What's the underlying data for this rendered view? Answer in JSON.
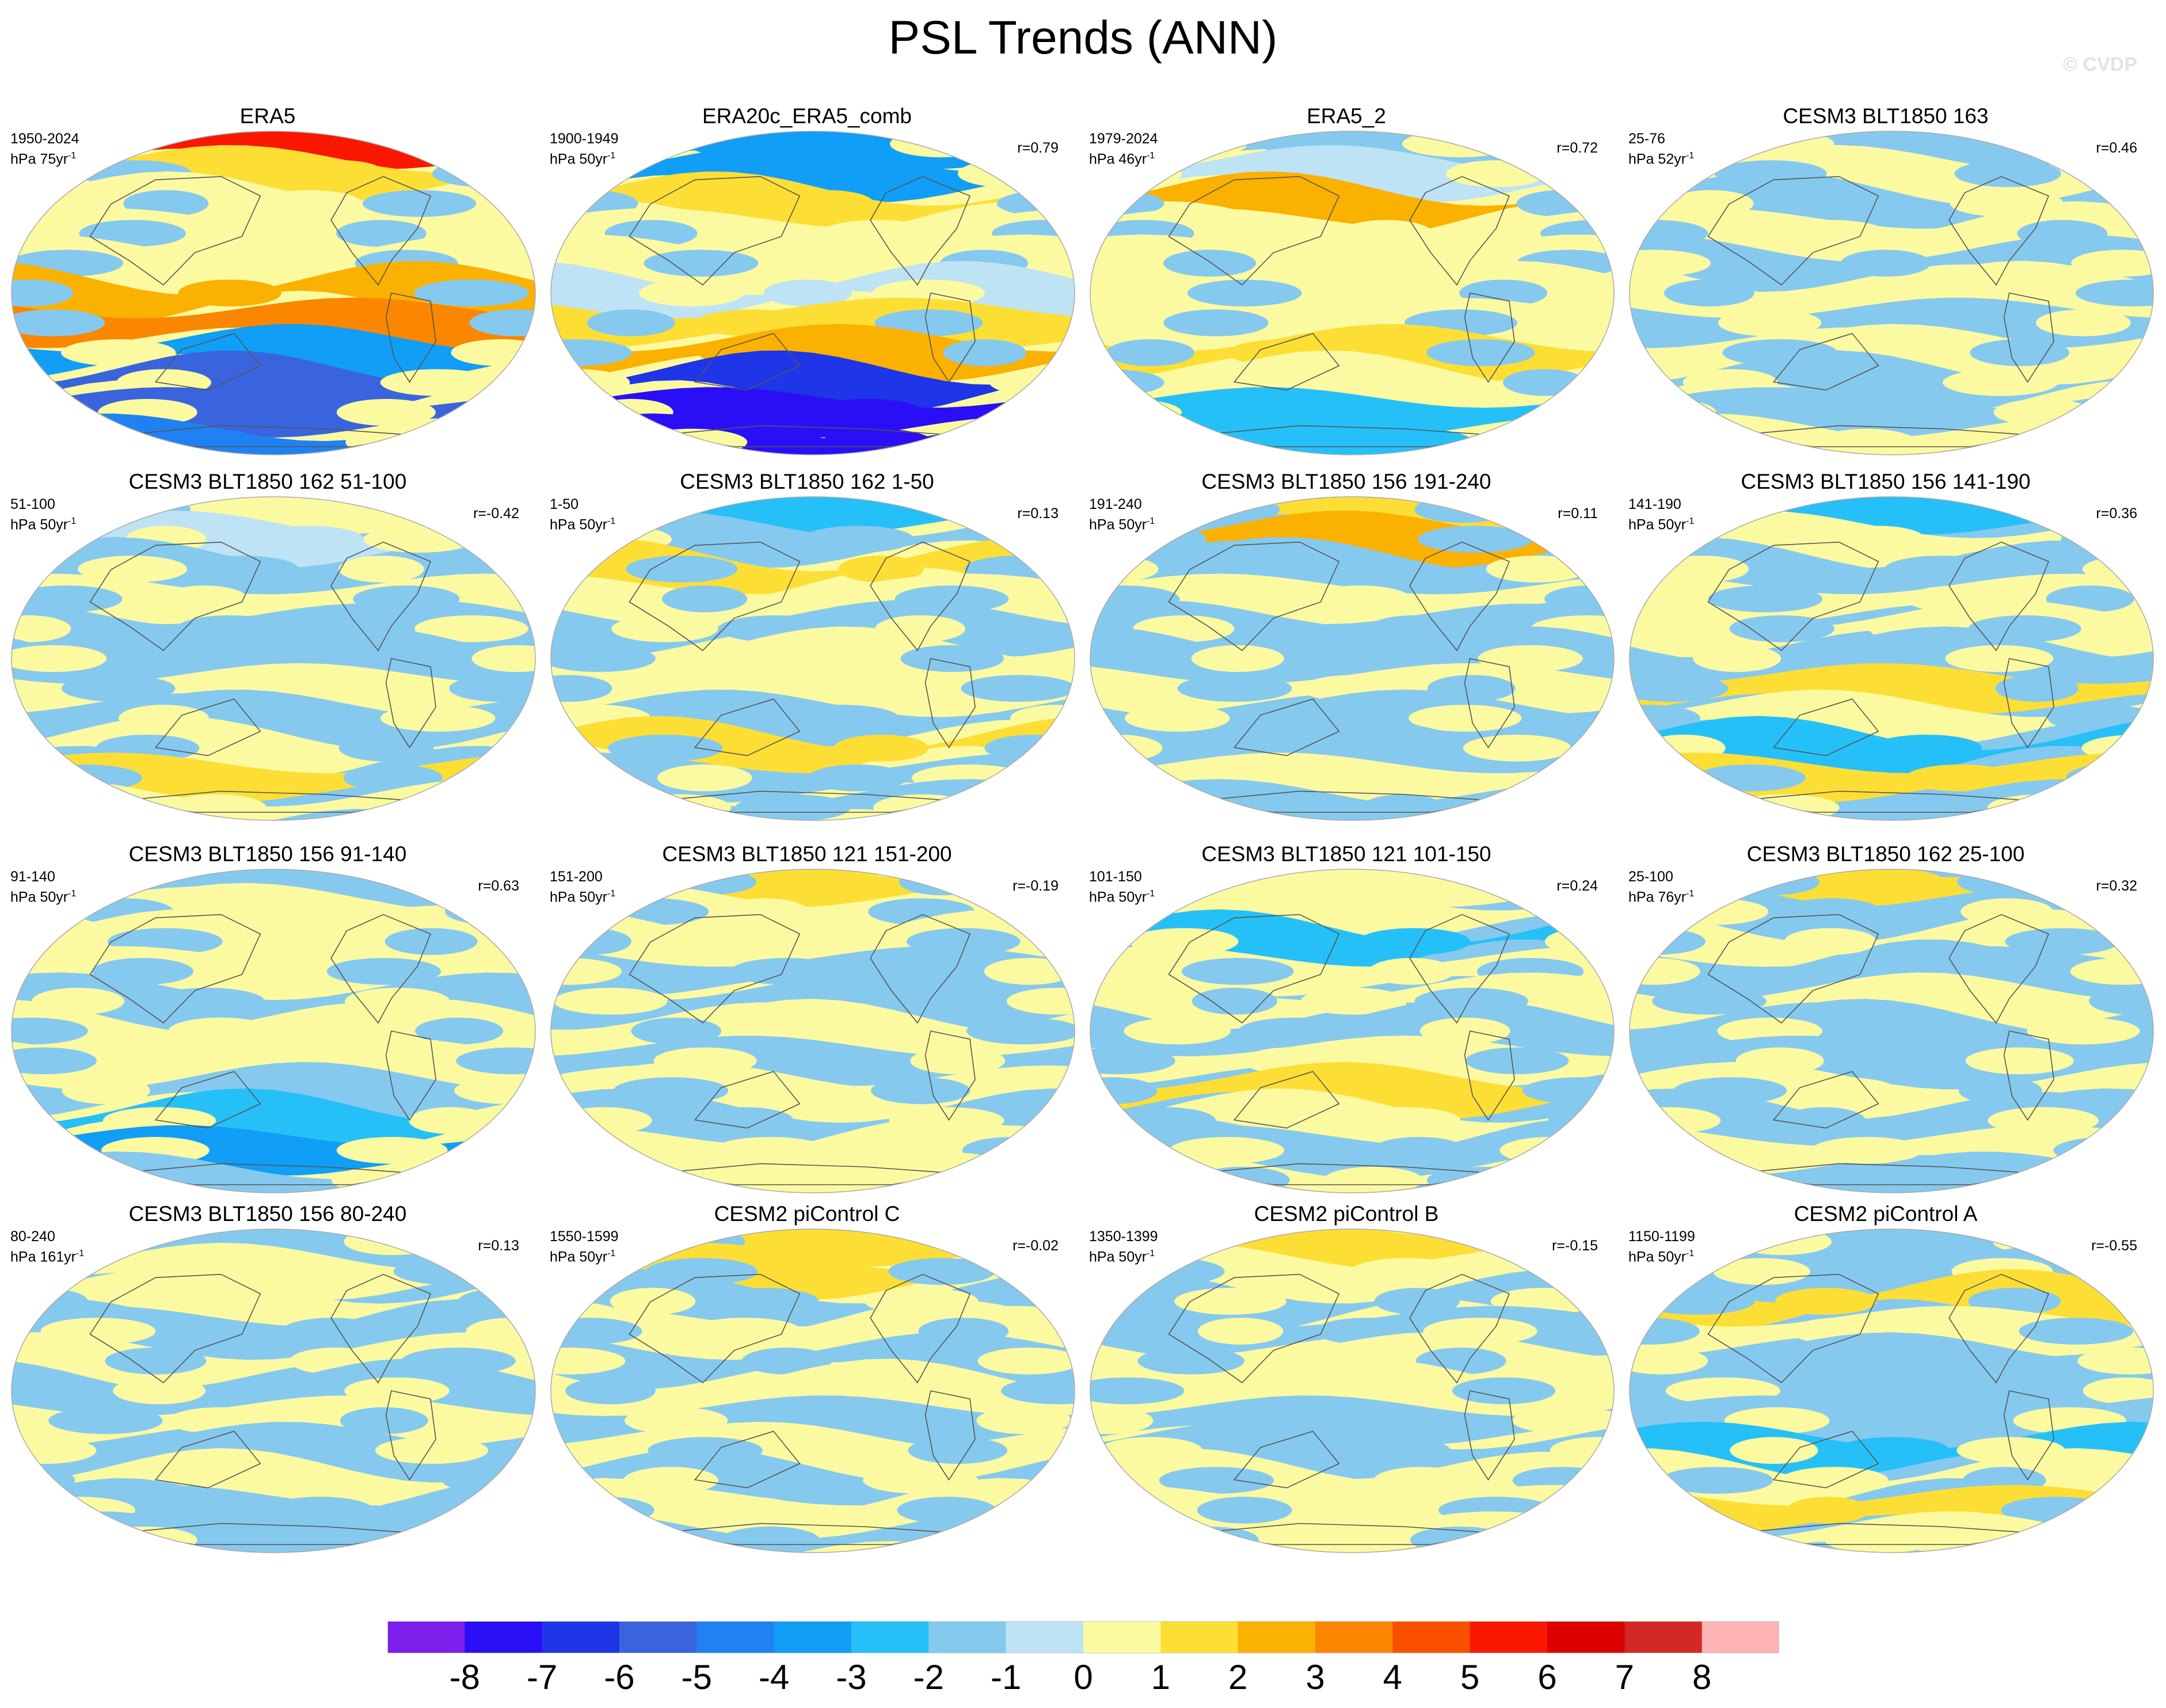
{
  "title": "PSL Trends (ANN)",
  "copyright": "© CVDP",
  "colorbar": {
    "labels": [
      "-8",
      "-7",
      "-6",
      "-5",
      "-4",
      "-3",
      "-2",
      "-1",
      "0",
      "1",
      "2",
      "3",
      "4",
      "5",
      "6",
      "7",
      "8"
    ],
    "colors": [
      "#7c1fea",
      "#2a0ff6",
      "#1e35e8",
      "#3a64de",
      "#2082f2",
      "#109ef6",
      "#26c0f8",
      "#86c9ef",
      "#bde3f5",
      "#fcfaa0",
      "#fdde35",
      "#fbb100",
      "#fb8600",
      "#fb5000",
      "#fa1700",
      "#dd0000",
      "#d42727",
      "#feb3b5"
    ]
  },
  "panels": [
    {
      "title": "ERA5",
      "years": "1950-2024",
      "units": "hPa 75yr",
      "r": "",
      "b": [
        6,
        2,
        1,
        1,
        1,
        3,
        4,
        -3,
        -5,
        -5,
        -4
      ],
      "a": [
        0.6,
        -0.4,
        0.2,
        0.4
      ]
    },
    {
      "title": "ERA20c_ERA5_comb",
      "years": "1900-1949",
      "units": "hPa 50yr",
      "r": "r=0.79",
      "b": [
        -3,
        -3,
        2,
        1,
        1,
        0,
        2,
        3,
        -6,
        -7,
        -7
      ],
      "a": [
        0.5,
        3.5,
        0.1,
        -0.2
      ]
    },
    {
      "title": "ERA5_2",
      "years": "1979-2024",
      "units": "hPa 46yr",
      "r": "r=0.72",
      "b": [
        -1,
        0,
        3,
        1,
        1,
        1,
        1,
        2,
        1,
        -2,
        -2
      ],
      "a": [
        0.3,
        2.8,
        -0.1,
        -0.3
      ]
    },
    {
      "title": "CESM3 BLT1850 163",
      "years": "25-76",
      "units": "hPa 52yr",
      "r": "r=0.46",
      "b": [
        -1,
        1,
        -1,
        1,
        -1,
        1,
        -1,
        1,
        -1,
        -1,
        1
      ],
      "a": [
        0.8,
        1.2,
        0.2,
        -0.1
      ]
    },
    {
      "title": "CESM3 BLT1850 162 51-100",
      "years": "51-100",
      "units": "hPa 50yr",
      "r": "r=-0.42",
      "b": [
        1,
        0,
        -1,
        1,
        -1,
        -1,
        1,
        -1,
        1,
        2,
        1
      ],
      "a": [
        1.4,
        0.6,
        -0.2,
        0.3
      ]
    },
    {
      "title": "CESM3 BLT1850 162 1-50",
      "years": "1-50",
      "units": "hPa 50yr",
      "r": "r=0.13",
      "b": [
        -2,
        -1,
        2,
        1,
        -1,
        1,
        1,
        -1,
        2,
        -1,
        -1
      ],
      "a": [
        2.2,
        5.0,
        0.0,
        0.2
      ]
    },
    {
      "title": "CESM3 BLT1850 156 191-240",
      "years": "191-240",
      "units": "hPa 50yr",
      "r": "r=0.11",
      "b": [
        2,
        3,
        -1,
        1,
        -1,
        -1,
        1,
        -1,
        -1,
        1,
        -1
      ],
      "a": [
        0.1,
        2.4,
        -0.3,
        -0.2
      ]
    },
    {
      "title": "CESM3 BLT1850 156 141-190",
      "years": "141-190",
      "units": "hPa 50yr",
      "r": "r=0.36",
      "b": [
        -2,
        1,
        -1,
        1,
        1,
        -1,
        2,
        1,
        -2,
        2,
        -1
      ],
      "a": [
        1.9,
        4.1,
        0.3,
        0.1
      ]
    },
    {
      "title": "CESM3 BLT1850 156 91-140",
      "years": "91-140",
      "units": "hPa 50yr",
      "r": "r=0.63",
      "b": [
        -1,
        1,
        1,
        1,
        -1,
        1,
        1,
        -1,
        -2,
        -3,
        -1
      ],
      "a": [
        0.4,
        5.7,
        -0.1,
        0.2
      ]
    },
    {
      "title": "CESM3 BLT1850 121 151-200",
      "years": "151-200",
      "units": "hPa 50yr",
      "r": "r=-0.19",
      "b": [
        2,
        1,
        1,
        -1,
        -1,
        1,
        -1,
        1,
        -1,
        1,
        1
      ],
      "a": [
        2.7,
        1.9,
        0.2,
        -0.3
      ]
    },
    {
      "title": "CESM3 BLT1850 121 101-150",
      "years": "101-150",
      "units": "hPa 50yr",
      "r": "r=0.24",
      "b": [
        1,
        1,
        -2,
        1,
        1,
        -1,
        1,
        2,
        1,
        -1,
        1
      ],
      "a": [
        1.0,
        4.4,
        -0.2,
        0.1
      ]
    },
    {
      "title": "CESM3 BLT1850 162 25-100",
      "years": "25-100",
      "units": "hPa 76yr",
      "r": "r=0.32",
      "b": [
        2,
        -1,
        1,
        -1,
        1,
        -1,
        -1,
        1,
        -1,
        1,
        -1
      ],
      "a": [
        3.1,
        2.2,
        0.1,
        0.3
      ]
    },
    {
      "title": "CESM3 BLT1850 156 80-240",
      "years": "80-240",
      "units": "hPa 161yr",
      "r": "r=0.13",
      "b": [
        -1,
        1,
        1,
        -1,
        1,
        -1,
        1,
        -1,
        1,
        -1,
        -1
      ],
      "a": [
        0.7,
        3.3,
        -0.3,
        0.0
      ]
    },
    {
      "title": "CESM2 piControl C",
      "years": "1550-1599",
      "units": "hPa 50yr",
      "r": "r=-0.02",
      "b": [
        2,
        2,
        -1,
        1,
        -1,
        1,
        -1,
        1,
        -1,
        1,
        -1
      ],
      "a": [
        1.6,
        0.9,
        0.2,
        0.2
      ]
    },
    {
      "title": "CESM2 piControl B",
      "years": "1350-1399",
      "units": "hPa 50yr",
      "r": "r=-0.15",
      "b": [
        2,
        1,
        -1,
        -1,
        1,
        1,
        -1,
        -1,
        1,
        1,
        1
      ],
      "a": [
        2.4,
        5.2,
        0.0,
        -0.2
      ]
    },
    {
      "title": "CESM2 piControl A",
      "years": "1150-1199",
      "units": "hPa 50yr",
      "r": "r=-0.55",
      "b": [
        -1,
        -1,
        2,
        1,
        -1,
        -1,
        -1,
        -2,
        1,
        2,
        1
      ],
      "a": [
        3.6,
        1.4,
        -0.1,
        0.3
      ]
    }
  ]
}
